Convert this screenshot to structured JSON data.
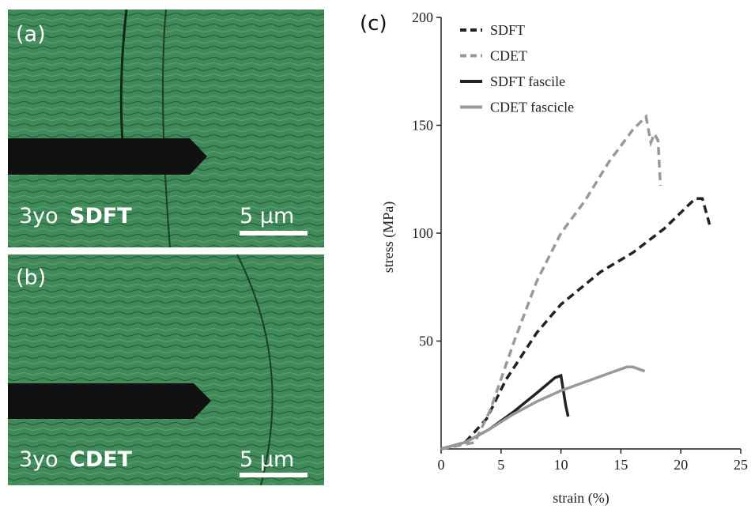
{
  "panels": [
    {
      "label": "(a)",
      "sample": "3yo",
      "tissue": "SDFT",
      "scale": "5 μm"
    },
    {
      "label": "(b)",
      "sample": "3yo",
      "tissue": "CDET",
      "scale": "5 μm"
    }
  ],
  "chart_data": {
    "type": "line",
    "panel_label": "(c)",
    "x_label": "strain (%)",
    "y_label": "stress (MPa)",
    "xlim": [
      0,
      25
    ],
    "xticks": [
      0,
      5,
      10,
      15,
      20,
      25
    ],
    "ylim": [
      0,
      200
    ],
    "yticks": [
      50,
      100,
      150,
      200
    ],
    "legend": "upper left",
    "series": [
      {
        "name": "SDFT",
        "color": "#222222",
        "style": "dashed",
        "x": [
          0,
          2,
          3.8,
          5.4,
          8,
          10,
          13.3,
          16,
          18.6,
          21.2,
          21.8,
          22.4
        ],
        "values": [
          0,
          3,
          14,
          32,
          54,
          67,
          82,
          91,
          102,
          116,
          116,
          104
        ]
      },
      {
        "name": "CDET",
        "color": "#999999",
        "style": "dashed",
        "x": [
          0,
          2.8,
          4.1,
          6.1,
          8,
          10,
          12,
          14,
          16,
          17.1,
          17.5,
          17.8,
          18.1,
          18.3
        ],
        "values": [
          0,
          3,
          18,
          50,
          78,
          100,
          115,
          133,
          148,
          154,
          142,
          146,
          143,
          122
        ]
      },
      {
        "name": "SDFT fascile",
        "color": "#222222",
        "style": "solid",
        "x": [
          0,
          2,
          4,
          6,
          8,
          9.5,
          10,
          10.4,
          10.6
        ],
        "values": [
          0,
          3,
          9,
          17,
          26,
          33,
          34,
          20,
          15
        ]
      },
      {
        "name": "CDET fascicle",
        "color": "#999999",
        "style": "solid",
        "x": [
          0,
          2,
          4,
          6,
          8,
          10,
          12,
          14,
          15.5,
          16,
          17
        ],
        "values": [
          0,
          3,
          9,
          16,
          22,
          27,
          31,
          35,
          38,
          38,
          36
        ]
      }
    ]
  }
}
